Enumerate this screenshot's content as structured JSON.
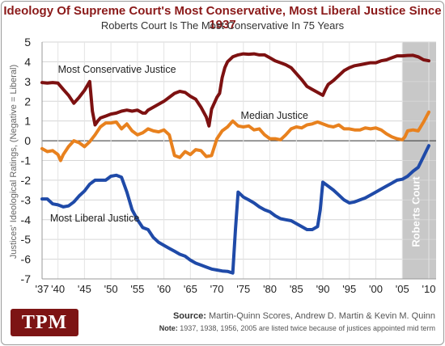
{
  "chart_data": {
    "type": "line",
    "title": "Ideology Of Supreme Court's Most Conservative, Most Liberal Justice Since 1937",
    "subtitle": "Roberts Court Is The Most Conservative In 75 Years",
    "ylabel": "Justices' Ideological Ratings, (Negative = Liberal)",
    "xlabel": "",
    "xlim": [
      1937,
      2010
    ],
    "ylim": [
      -7,
      5
    ],
    "xticks": [
      "'37",
      "'40",
      "'45",
      "'50",
      "'55",
      "'60",
      "'65",
      "'70",
      "'75",
      "'80",
      "'85",
      "'90",
      "'95",
      "'00",
      "'05",
      "'10"
    ],
    "xtick_values": [
      1937,
      1940,
      1945,
      1950,
      1955,
      1960,
      1965,
      1970,
      1975,
      1980,
      1985,
      1990,
      1995,
      2000,
      2005,
      2010
    ],
    "yticks": [
      5,
      4,
      3,
      2,
      1,
      0,
      -1,
      -2,
      -3,
      -4,
      -5,
      -6,
      -7
    ],
    "grid": true,
    "shaded_region": {
      "x_start": 2005,
      "x_end": 2010,
      "label": "Roberts Court",
      "color": "#c8c8c8"
    },
    "series": [
      {
        "name": "Most Conservative Justice",
        "color": "#7d1111",
        "points": [
          [
            1937,
            2.95
          ],
          [
            1938,
            2.92
          ],
          [
            1939,
            2.95
          ],
          [
            1940,
            2.92
          ],
          [
            1941,
            2.6
          ],
          [
            1942,
            2.3
          ],
          [
            1943,
            1.9
          ],
          [
            1944,
            2.2
          ],
          [
            1945,
            2.55
          ],
          [
            1946,
            3.0
          ],
          [
            1946.5,
            1.5
          ],
          [
            1947,
            0.8
          ],
          [
            1947.5,
            1.0
          ],
          [
            1948,
            1.15
          ],
          [
            1949,
            1.25
          ],
          [
            1950,
            1.35
          ],
          [
            1951,
            1.4
          ],
          [
            1952,
            1.5
          ],
          [
            1953,
            1.55
          ],
          [
            1954,
            1.5
          ],
          [
            1955,
            1.55
          ],
          [
            1956,
            1.4
          ],
          [
            1956.5,
            1.4
          ],
          [
            1957,
            1.55
          ],
          [
            1958,
            1.7
          ],
          [
            1959,
            1.85
          ],
          [
            1960,
            2.0
          ],
          [
            1961,
            2.2
          ],
          [
            1962,
            2.4
          ],
          [
            1963,
            2.5
          ],
          [
            1964,
            2.45
          ],
          [
            1965,
            2.25
          ],
          [
            1966,
            2.1
          ],
          [
            1967,
            1.7
          ],
          [
            1968,
            1.2
          ],
          [
            1968.5,
            0.75
          ],
          [
            1969,
            1.6
          ],
          [
            1970,
            2.2
          ],
          [
            1970.5,
            2.4
          ],
          [
            1971,
            3.2
          ],
          [
            1971.5,
            3.7
          ],
          [
            1972,
            4.0
          ],
          [
            1973,
            4.25
          ],
          [
            1974,
            4.35
          ],
          [
            1975,
            4.4
          ],
          [
            1976,
            4.38
          ],
          [
            1977,
            4.4
          ],
          [
            1978,
            4.35
          ],
          [
            1979,
            4.35
          ],
          [
            1980,
            4.2
          ],
          [
            1981,
            4.05
          ],
          [
            1982,
            3.95
          ],
          [
            1983,
            3.85
          ],
          [
            1984,
            3.7
          ],
          [
            1985,
            3.4
          ],
          [
            1986,
            3.1
          ],
          [
            1987,
            2.75
          ],
          [
            1988,
            2.6
          ],
          [
            1989,
            2.45
          ],
          [
            1990,
            2.3
          ],
          [
            1990.5,
            2.6
          ],
          [
            1991,
            2.85
          ],
          [
            1992,
            3.05
          ],
          [
            1993,
            3.3
          ],
          [
            1994,
            3.55
          ],
          [
            1995,
            3.7
          ],
          [
            1996,
            3.8
          ],
          [
            1997,
            3.85
          ],
          [
            1998,
            3.9
          ],
          [
            1999,
            3.95
          ],
          [
            2000,
            3.95
          ],
          [
            2001,
            4.05
          ],
          [
            2002,
            4.1
          ],
          [
            2003,
            4.2
          ],
          [
            2004,
            4.3
          ],
          [
            2005,
            4.3
          ],
          [
            2006,
            4.32
          ],
          [
            2007,
            4.33
          ],
          [
            2008,
            4.25
          ],
          [
            2009,
            4.1
          ],
          [
            2010,
            4.05
          ]
        ]
      },
      {
        "name": "Median Justice",
        "color": "#e8811e",
        "points": [
          [
            1937,
            -0.4
          ],
          [
            1938,
            -0.55
          ],
          [
            1939,
            -0.5
          ],
          [
            1940,
            -0.7
          ],
          [
            1940.5,
            -1.0
          ],
          [
            1941,
            -0.7
          ],
          [
            1942,
            -0.3
          ],
          [
            1943,
            0.0
          ],
          [
            1944,
            -0.1
          ],
          [
            1945,
            -0.3
          ],
          [
            1946,
            -0.05
          ],
          [
            1947,
            0.3
          ],
          [
            1948,
            0.7
          ],
          [
            1949,
            0.9
          ],
          [
            1950,
            0.9
          ],
          [
            1951,
            0.95
          ],
          [
            1952,
            0.6
          ],
          [
            1953,
            0.85
          ],
          [
            1954,
            0.5
          ],
          [
            1955,
            0.3
          ],
          [
            1956,
            0.4
          ],
          [
            1956.5,
            0.5
          ],
          [
            1957,
            0.6
          ],
          [
            1958,
            0.5
          ],
          [
            1959,
            0.45
          ],
          [
            1960,
            0.55
          ],
          [
            1961,
            0.3
          ],
          [
            1962,
            -0.75
          ],
          [
            1963,
            -0.85
          ],
          [
            1964,
            -0.55
          ],
          [
            1965,
            -0.7
          ],
          [
            1966,
            -0.45
          ],
          [
            1967,
            -0.5
          ],
          [
            1968,
            -0.8
          ],
          [
            1969,
            -0.75
          ],
          [
            1970,
            0.1
          ],
          [
            1971,
            0.5
          ],
          [
            1972,
            0.7
          ],
          [
            1973,
            1.0
          ],
          [
            1974,
            0.75
          ],
          [
            1975,
            0.7
          ],
          [
            1976,
            0.75
          ],
          [
            1977,
            0.55
          ],
          [
            1978,
            0.6
          ],
          [
            1979,
            0.3
          ],
          [
            1980,
            0.1
          ],
          [
            1981,
            0.1
          ],
          [
            1982,
            0.05
          ],
          [
            1983,
            0.3
          ],
          [
            1984,
            0.6
          ],
          [
            1985,
            0.7
          ],
          [
            1986,
            0.65
          ],
          [
            1987,
            0.8
          ],
          [
            1988,
            0.85
          ],
          [
            1989,
            0.95
          ],
          [
            1990,
            0.85
          ],
          [
            1991,
            0.75
          ],
          [
            1992,
            0.7
          ],
          [
            1993,
            0.8
          ],
          [
            1994,
            0.6
          ],
          [
            1995,
            0.6
          ],
          [
            1996,
            0.55
          ],
          [
            1997,
            0.55
          ],
          [
            1998,
            0.65
          ],
          [
            1999,
            0.6
          ],
          [
            2000,
            0.65
          ],
          [
            2001,
            0.55
          ],
          [
            2002,
            0.35
          ],
          [
            2003,
            0.2
          ],
          [
            2004,
            0.1
          ],
          [
            2005,
            0.05
          ],
          [
            2005.5,
            0.2
          ],
          [
            2006,
            0.5
          ],
          [
            2007,
            0.55
          ],
          [
            2008,
            0.5
          ],
          [
            2009,
            0.95
          ],
          [
            2010,
            1.45
          ]
        ]
      },
      {
        "name": "Most Liberal Justice",
        "color": "#1f4aa8",
        "points": [
          [
            1937,
            -2.95
          ],
          [
            1938,
            -2.95
          ],
          [
            1939,
            -3.2
          ],
          [
            1940,
            -3.25
          ],
          [
            1941,
            -3.35
          ],
          [
            1942,
            -3.3
          ],
          [
            1943,
            -3.1
          ],
          [
            1944,
            -2.8
          ],
          [
            1945,
            -2.55
          ],
          [
            1946,
            -2.2
          ],
          [
            1947,
            -2.0
          ],
          [
            1948,
            -2.0
          ],
          [
            1949,
            -2.0
          ],
          [
            1950,
            -1.8
          ],
          [
            1951,
            -1.75
          ],
          [
            1952,
            -1.85
          ],
          [
            1953,
            -2.6
          ],
          [
            1954,
            -3.5
          ],
          [
            1955,
            -4.0
          ],
          [
            1956,
            -4.4
          ],
          [
            1957,
            -4.5
          ],
          [
            1958,
            -4.9
          ],
          [
            1959,
            -5.15
          ],
          [
            1960,
            -5.3
          ],
          [
            1961,
            -5.45
          ],
          [
            1962,
            -5.6
          ],
          [
            1963,
            -5.75
          ],
          [
            1964,
            -5.85
          ],
          [
            1965,
            -6.05
          ],
          [
            1966,
            -6.2
          ],
          [
            1967,
            -6.3
          ],
          [
            1968,
            -6.4
          ],
          [
            1969,
            -6.5
          ],
          [
            1970,
            -6.55
          ],
          [
            1971,
            -6.6
          ],
          [
            1972,
            -6.62
          ],
          [
            1973,
            -6.7
          ],
          [
            1973.5,
            -4.5
          ],
          [
            1974,
            -2.6
          ],
          [
            1975,
            -2.85
          ],
          [
            1976,
            -3.0
          ],
          [
            1977,
            -3.15
          ],
          [
            1978,
            -3.35
          ],
          [
            1979,
            -3.5
          ],
          [
            1980,
            -3.6
          ],
          [
            1981,
            -3.8
          ],
          [
            1982,
            -3.95
          ],
          [
            1983,
            -4.0
          ],
          [
            1984,
            -4.05
          ],
          [
            1985,
            -4.2
          ],
          [
            1986,
            -4.35
          ],
          [
            1987,
            -4.5
          ],
          [
            1988,
            -4.5
          ],
          [
            1989,
            -4.35
          ],
          [
            1989.5,
            -3.5
          ],
          [
            1990,
            -2.1
          ],
          [
            1991,
            -2.3
          ],
          [
            1992,
            -2.5
          ],
          [
            1993,
            -2.75
          ],
          [
            1994,
            -3.0
          ],
          [
            1995,
            -3.15
          ],
          [
            1996,
            -3.1
          ],
          [
            1997,
            -3.0
          ],
          [
            1998,
            -2.9
          ],
          [
            1999,
            -2.75
          ],
          [
            2000,
            -2.6
          ],
          [
            2001,
            -2.45
          ],
          [
            2002,
            -2.3
          ],
          [
            2003,
            -2.15
          ],
          [
            2004,
            -2.0
          ],
          [
            2005,
            -1.95
          ],
          [
            2006,
            -1.8
          ],
          [
            2007,
            -1.55
          ],
          [
            2008,
            -1.35
          ],
          [
            2009,
            -0.8
          ],
          [
            2010,
            -0.25
          ]
        ]
      }
    ],
    "annotations": [
      {
        "text": "Most Conservative Justice",
        "x": 1940,
        "y": 3.45
      },
      {
        "text": "Median Justice",
        "x": 1974.5,
        "y": 1.1
      },
      {
        "text": "Most Liberal Justice",
        "x": 1938.5,
        "y": -4.1
      }
    ]
  },
  "footer": {
    "logo": "TPM",
    "source_label": "Source:",
    "source_text": "Martin-Quinn Scores, Andrew D. Martin & Kevin M. Quinn",
    "note_label": "Note:",
    "note_text": "1937, 1938, 1956, 2005 are listed twice because of justices appointed mid term"
  }
}
